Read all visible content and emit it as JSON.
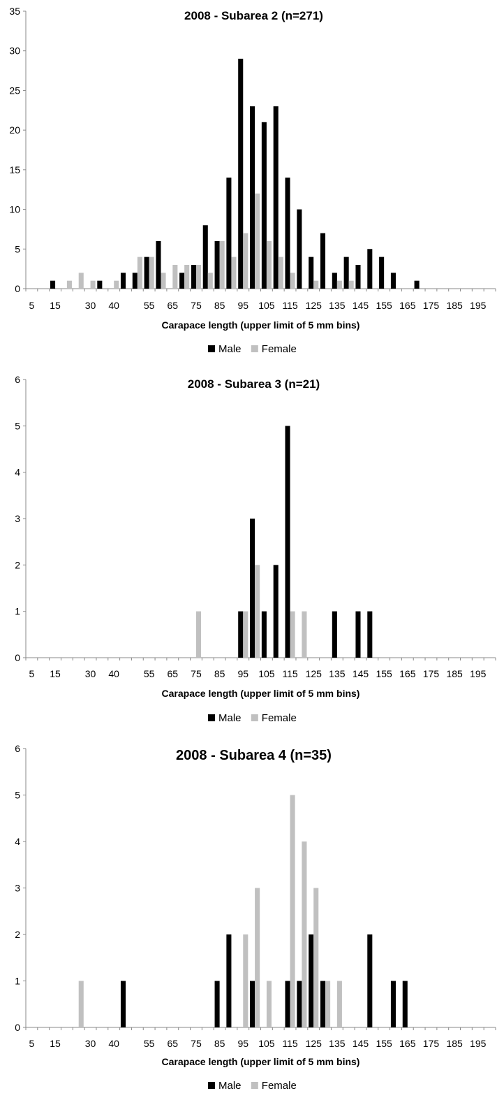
{
  "chart_data": [
    {
      "type": "bar",
      "title": "2008 - Subarea 2 (n=271)",
      "xlabel": "Carapace length (upper limit of 5 mm bins)",
      "ylabel": "",
      "ylim": [
        0,
        35
      ],
      "yticks": [
        0,
        5,
        10,
        15,
        20,
        25,
        30,
        35
      ],
      "grid": false,
      "legend_position": "bottom",
      "colors": {
        "Male": "#000000",
        "Female": "#c0c0c0"
      },
      "categories": [
        5,
        10,
        15,
        20,
        25,
        30,
        35,
        40,
        45,
        50,
        55,
        60,
        65,
        70,
        75,
        80,
        85,
        90,
        95,
        100,
        105,
        110,
        115,
        120,
        125,
        130,
        135,
        140,
        145,
        150,
        155,
        160,
        165,
        170,
        175,
        180,
        185,
        190,
        195,
        200
      ],
      "tick_labels": [
        "5",
        "15",
        "30",
        "40",
        "55",
        "65",
        "75",
        "85",
        "95",
        "105",
        "115",
        "125",
        "135",
        "145",
        "155",
        "165",
        "175",
        "185",
        "195"
      ],
      "series": [
        {
          "name": "Male",
          "values": [
            0,
            0,
            1,
            0,
            0,
            0,
            1,
            0,
            2,
            2,
            4,
            6,
            0,
            2,
            3,
            8,
            6,
            14,
            29,
            23,
            21,
            23,
            14,
            10,
            4,
            7,
            2,
            4,
            3,
            5,
            4,
            2,
            0,
            1,
            0,
            0,
            0,
            0,
            0,
            0
          ]
        },
        {
          "name": "Female",
          "values": [
            0,
            0,
            0,
            1,
            2,
            1,
            0,
            1,
            0,
            4,
            4,
            2,
            3,
            3,
            3,
            2,
            6,
            4,
            7,
            12,
            6,
            4,
            2,
            0,
            1,
            0,
            1,
            1,
            0,
            0,
            0,
            0,
            0,
            0,
            0,
            0,
            0,
            0,
            0,
            0
          ]
        }
      ]
    },
    {
      "type": "bar",
      "title": "2008 - Subarea 3 (n=21)",
      "xlabel": "Carapace length (upper limit of 5 mm bins)",
      "ylabel": "",
      "ylim": [
        0,
        6
      ],
      "yticks": [
        0,
        1,
        2,
        3,
        4,
        5,
        6
      ],
      "grid": false,
      "legend_position": "bottom",
      "colors": {
        "Male": "#000000",
        "Female": "#c0c0c0"
      },
      "categories": [
        5,
        10,
        15,
        20,
        25,
        30,
        35,
        40,
        45,
        50,
        55,
        60,
        65,
        70,
        75,
        80,
        85,
        90,
        95,
        100,
        105,
        110,
        115,
        120,
        125,
        130,
        135,
        140,
        145,
        150,
        155,
        160,
        165,
        170,
        175,
        180,
        185,
        190,
        195,
        200
      ],
      "tick_labels": [
        "5",
        "15",
        "30",
        "40",
        "55",
        "65",
        "75",
        "85",
        "95",
        "105",
        "115",
        "125",
        "135",
        "145",
        "155",
        "165",
        "175",
        "185",
        "195"
      ],
      "series": [
        {
          "name": "Male",
          "values": [
            0,
            0,
            0,
            0,
            0,
            0,
            0,
            0,
            0,
            0,
            0,
            0,
            0,
            0,
            0,
            0,
            0,
            0,
            1,
            3,
            1,
            2,
            5,
            0,
            0,
            0,
            1,
            0,
            1,
            1,
            0,
            0,
            0,
            0,
            0,
            0,
            0,
            0,
            0,
            0
          ]
        },
        {
          "name": "Female",
          "values": [
            0,
            0,
            0,
            0,
            0,
            0,
            0,
            0,
            0,
            0,
            0,
            0,
            0,
            0,
            1,
            0,
            0,
            0,
            1,
            2,
            0,
            0,
            1,
            1,
            0,
            0,
            0,
            0,
            0,
            0,
            0,
            0,
            0,
            0,
            0,
            0,
            0,
            0,
            0,
            0
          ]
        }
      ]
    },
    {
      "type": "bar",
      "title": "2008 - Subarea 4 (n=35)",
      "xlabel": "Carapace length (upper limit of 5 mm bins)",
      "ylabel": "",
      "ylim": [
        0,
        6
      ],
      "yticks": [
        0,
        1,
        2,
        3,
        4,
        5,
        6
      ],
      "grid": false,
      "legend_position": "bottom",
      "colors": {
        "Male": "#000000",
        "Female": "#c0c0c0"
      },
      "categories": [
        5,
        10,
        15,
        20,
        25,
        30,
        35,
        40,
        45,
        50,
        55,
        60,
        65,
        70,
        75,
        80,
        85,
        90,
        95,
        100,
        105,
        110,
        115,
        120,
        125,
        130,
        135,
        140,
        145,
        150,
        155,
        160,
        165,
        170,
        175,
        180,
        185,
        190,
        195,
        200
      ],
      "tick_labels": [
        "5",
        "15",
        "30",
        "40",
        "55",
        "65",
        "75",
        "85",
        "95",
        "105",
        "115",
        "125",
        "135",
        "145",
        "155",
        "165",
        "175",
        "185",
        "195"
      ],
      "series": [
        {
          "name": "Male",
          "values": [
            0,
            0,
            0,
            0,
            0,
            0,
            0,
            0,
            1,
            0,
            0,
            0,
            0,
            0,
            0,
            0,
            1,
            2,
            0,
            1,
            0,
            0,
            1,
            1,
            2,
            1,
            0,
            0,
            0,
            2,
            0,
            1,
            1,
            0,
            0,
            0,
            0,
            0,
            0,
            0
          ]
        },
        {
          "name": "Female",
          "values": [
            0,
            0,
            0,
            0,
            1,
            0,
            0,
            0,
            0,
            0,
            0,
            0,
            0,
            0,
            0,
            0,
            0,
            0,
            2,
            3,
            1,
            0,
            5,
            4,
            3,
            1,
            1,
            0,
            0,
            0,
            0,
            0,
            0,
            0,
            0,
            0,
            0,
            0,
            0,
            0
          ]
        }
      ]
    }
  ]
}
